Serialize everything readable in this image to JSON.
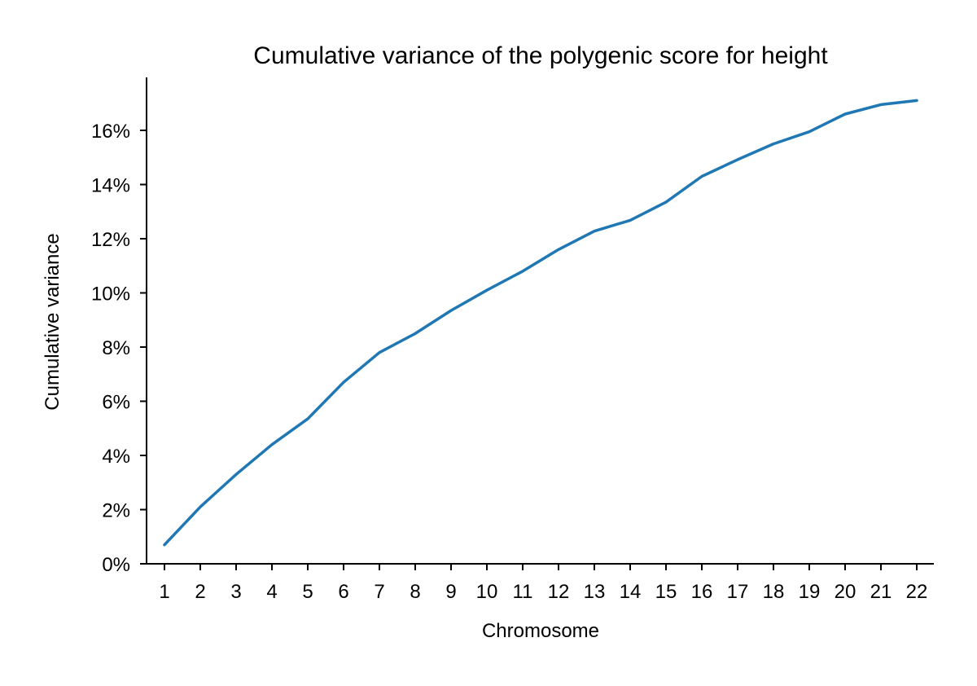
{
  "chart_data": {
    "type": "line",
    "title": "Cumulative variance of the polygenic score for height",
    "xlabel": "Chromosome",
    "ylabel": "Cumulative variance",
    "categories": [
      "1",
      "2",
      "3",
      "4",
      "5",
      "6",
      "7",
      "8",
      "9",
      "10",
      "11",
      "12",
      "13",
      "14",
      "15",
      "16",
      "17",
      "18",
      "19",
      "20",
      "21",
      "22"
    ],
    "series": [
      {
        "values": [
          0.7,
          2.1,
          3.3,
          4.4,
          5.35,
          6.7,
          7.8,
          8.5,
          9.35,
          10.1,
          10.8,
          11.6,
          12.28,
          12.68,
          13.35,
          14.3,
          14.92,
          15.5,
          15.95,
          16.6,
          16.95,
          17.1
        ]
      }
    ],
    "ylim": [
      0,
      18
    ],
    "yticks": [
      0,
      2,
      4,
      6,
      8,
      10,
      12,
      14,
      16
    ],
    "ytick_labels": [
      "0%",
      "2%",
      "4%",
      "6%",
      "8%",
      "10%",
      "12%",
      "14%",
      "16%"
    ],
    "grid": false,
    "line_color": "#1f77b4"
  }
}
